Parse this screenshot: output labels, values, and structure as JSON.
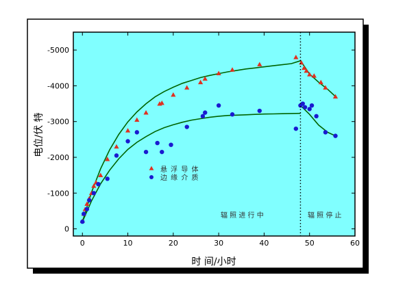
{
  "chart_data": {
    "type": "scatter",
    "xlabel": "时 间/小时",
    "ylabel": "电位/伏 特",
    "xlim": [
      -2,
      60
    ],
    "ylim": [
      200,
      -5500
    ],
    "x_ticks": [
      0,
      10,
      20,
      30,
      40,
      50,
      60
    ],
    "y_ticks": [
      0,
      -1000,
      -2000,
      -3000,
      -4000,
      -5000
    ],
    "grid": false,
    "legend_position": "center-left",
    "colors": {
      "plot_bg": "#80ffff",
      "frame": "#000000",
      "fit_line": "#006400"
    },
    "phase_divider_x": 48,
    "annotations": [
      {
        "text": "辐 照 进 行 中",
        "x": 40,
        "y": -460
      },
      {
        "text": "辐 照 停 止",
        "x": 54,
        "y": -460
      }
    ],
    "series": [
      {
        "name": "悬 浮 导 体",
        "marker": "triangle",
        "color": "#e03020",
        "x": [
          0,
          0.3,
          0.6,
          1,
          1.5,
          2,
          2.5,
          3,
          4,
          5.5,
          7.5,
          10,
          12,
          14,
          17,
          17.5,
          20,
          23,
          26,
          27,
          30,
          33,
          39,
          47,
          48.2,
          48.8,
          49.3,
          50,
          51,
          52.5,
          53.5,
          55.7
        ],
        "y": [
          -220,
          -420,
          -550,
          -700,
          -850,
          -1000,
          -1200,
          -1300,
          -1500,
          -1950,
          -2300,
          -2750,
          -3050,
          -3250,
          -3500,
          -3520,
          -3750,
          -3950,
          -4100,
          -4200,
          -4350,
          -4450,
          -4600,
          -4800,
          -4650,
          -4500,
          -4420,
          -4320,
          -4280,
          -4100,
          -3950,
          -3700
        ]
      },
      {
        "name": "边 缘 介 质",
        "marker": "circle",
        "color": "#1a1ad0",
        "x": [
          0,
          0.3,
          1,
          1.5,
          2.5,
          3.5,
          5.5,
          7.5,
          10,
          12,
          14,
          16.5,
          17.5,
          19.5,
          23,
          26.5,
          27,
          30,
          33,
          39,
          47,
          48,
          48.5,
          49,
          50,
          50.5,
          51.5,
          53.5,
          55.7
        ],
        "y": [
          -200,
          -420,
          -550,
          -800,
          -1000,
          -1250,
          -1400,
          -2050,
          -2450,
          -2700,
          -2150,
          -2400,
          -2150,
          -2350,
          -2850,
          -3150,
          -3250,
          -3450,
          -3200,
          -3300,
          -2800,
          -3450,
          -3500,
          -3400,
          -3350,
          -3450,
          -3150,
          -2700,
          -2600
        ]
      },
      {
        "name": "",
        "type": "line",
        "color": "#006400",
        "x": [
          0,
          2,
          4,
          6,
          8,
          10,
          12,
          14,
          16,
          18,
          20,
          22,
          24,
          26,
          28,
          30,
          32,
          34,
          36,
          38,
          40,
          42,
          44,
          46,
          48
        ],
        "y": [
          -200,
          -1020,
          -1680,
          -2210,
          -2640,
          -2990,
          -3270,
          -3500,
          -3690,
          -3840,
          -3960,
          -4070,
          -4150,
          -4230,
          -4290,
          -4340,
          -4390,
          -4430,
          -4470,
          -4500,
          -4530,
          -4560,
          -4590,
          -4620,
          -4700
        ]
      },
      {
        "name": "",
        "type": "line",
        "color": "#006400",
        "x": [
          0,
          2,
          4,
          6,
          8,
          10,
          12,
          14,
          16,
          18,
          20,
          22,
          24,
          26,
          28,
          30,
          32,
          34,
          36,
          38,
          40,
          42,
          44,
          46,
          48
        ],
        "y": [
          -200,
          -780,
          -1260,
          -1640,
          -1960,
          -2220,
          -2420,
          -2580,
          -2720,
          -2830,
          -2910,
          -2980,
          -3040,
          -3080,
          -3120,
          -3150,
          -3170,
          -3180,
          -3190,
          -3200,
          -3210,
          -3215,
          -3220,
          -3225,
          -3230
        ]
      },
      {
        "name": "",
        "type": "line",
        "color": "#006400",
        "x": [
          48,
          50,
          52,
          54,
          55.7
        ],
        "y": [
          -4700,
          -4330,
          -4100,
          -3900,
          -3700
        ]
      },
      {
        "name": "",
        "type": "line",
        "color": "#006400",
        "x": [
          48,
          50,
          52,
          54,
          55.7
        ],
        "y": [
          -3450,
          -3200,
          -2900,
          -2700,
          -2600
        ]
      }
    ]
  }
}
